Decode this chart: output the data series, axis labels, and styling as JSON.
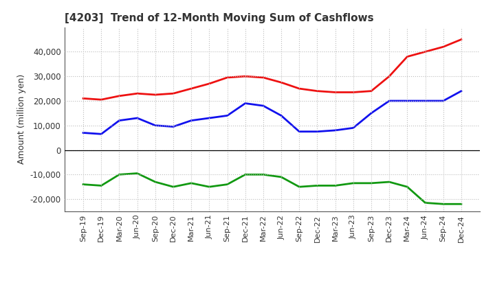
{
  "title": "[4203]  Trend of 12-Month Moving Sum of Cashflows",
  "ylabel": "Amount (million yen)",
  "background_color": "#ffffff",
  "grid_color": "#bbbbbb",
  "x_labels": [
    "Sep-19",
    "Dec-19",
    "Mar-20",
    "Jun-20",
    "Sep-20",
    "Dec-20",
    "Mar-21",
    "Jun-21",
    "Sep-21",
    "Dec-21",
    "Mar-22",
    "Jun-22",
    "Sep-22",
    "Dec-22",
    "Mar-23",
    "Jun-23",
    "Sep-23",
    "Dec-23",
    "Mar-24",
    "Jun-24",
    "Sep-24",
    "Dec-24"
  ],
  "operating": [
    21000,
    20500,
    22000,
    23000,
    22500,
    23000,
    25000,
    27000,
    29500,
    30000,
    29500,
    27500,
    25000,
    24000,
    23500,
    23500,
    24000,
    30000,
    38000,
    40000,
    42000,
    45000
  ],
  "investing": [
    -14000,
    -14500,
    -10000,
    -9500,
    -13000,
    -15000,
    -13500,
    -15000,
    -14000,
    -10000,
    -10000,
    -11000,
    -15000,
    -14500,
    -14500,
    -13500,
    -13500,
    -13000,
    -15000,
    -21500,
    -22000,
    -22000
  ],
  "free": [
    7000,
    6500,
    12000,
    13000,
    10000,
    9500,
    12000,
    13000,
    14000,
    19000,
    18000,
    14000,
    7500,
    7500,
    8000,
    9000,
    15000,
    20000,
    20000,
    20000,
    20000,
    24000
  ],
  "operating_color": "#ee1111",
  "investing_color": "#119911",
  "free_color": "#1111ee",
  "ylim": [
    -25000,
    50000
  ],
  "yticks": [
    -20000,
    -10000,
    0,
    10000,
    20000,
    30000,
    40000
  ],
  "line_width": 2.0,
  "title_color": "#333333",
  "tick_color": "#333333"
}
